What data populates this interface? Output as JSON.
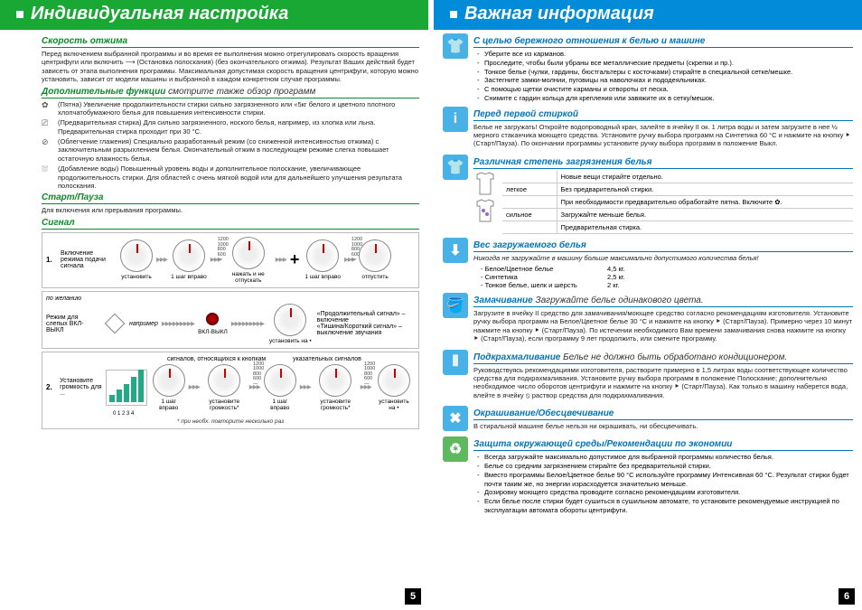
{
  "left": {
    "header": "Индивидуальная настройка",
    "spin": {
      "title": "Скорость отжима",
      "text": "Перед включением выбранной программы и во время ее выполнения можно отрегулировать скорость вращения центрифуги или включить ⟶ (Остановка полоскания) (без окончательного отжима). Результат Ваших действий будет зависеть от этапа выполнения программы. Максимальная допустимая скорость вращения центрифуги, которую можно установить, зависит от модели машины и выбранной в каждом конкретном случае программы."
    },
    "extra": {
      "title": "Дополнительные функции",
      "suffix": " смотрите также обзор программ",
      "items": [
        {
          "icon": "✿",
          "label": "(Пятна)",
          "text": "Увеличение продолжительности стирки сильно загрязненного или «5кг белого и цветного плотного хлопчатобумажного белья для повышения интенсивности стирки."
        },
        {
          "icon": "⎚",
          "label": "(Предварительная стирка)",
          "text": "Для сильно загрязненного, ноского белья, например, из хлопка или льна. Предварительная стирка проходит при 30 °C."
        },
        {
          "icon": "⊘",
          "label": "(Облегчение глажения)",
          "text": "Специально разработанный режим (со сниженной интенсивностью отжима) с заключительным разрыхлением белья. Окончательный отжим в последующем режиме слегка повышает остаточную влажность белья."
        },
        {
          "icon": "⛆",
          "label": "(Добавление воды)",
          "text": "Повышенный уровень воды и дополнительное полоскание, увеличивающее продолжительность стирки. Для областей с очень мягкой водой или для дальнейшего улучшения результата полоскания."
        }
      ]
    },
    "start": {
      "title": "Старт/Пауза",
      "text": "Для включения или прерывания программы."
    },
    "signal": {
      "title": "Сигнал"
    },
    "panel1": {
      "label1": "1.",
      "desc": "Включение режима подачи сигнала",
      "dials": [
        "установить",
        "1 шаг вправо",
        "нажать и не отпускать",
        "1 шаг вправо",
        "отпустить"
      ],
      "ticks": "1200\n1000\n800\n600\n—"
    },
    "panel2": {
      "heading": "по желанию",
      "left_label": "Режим для слепых ВКЛ-ВЫКЛ",
      "mid": "например",
      "onoff": "ВКЛ-ВЫКЛ",
      "right": "«Продолжительный сигнал» – включение\n«Тишина/Короткий сигнал» – выключение звучания",
      "dial": "установить на •"
    },
    "panel3": {
      "label1": "2.",
      "desc": "Установите громкость для ...",
      "h1": "сигналов, относящихся к кнопкам",
      "h2": "указательных сигналов",
      "dials": [
        "1 шаг вправо",
        "установите громкость*",
        "1 шаг вправо",
        "установите громкость*",
        "установить на •"
      ],
      "ticks": "1200\n1000\n800\n600\n—",
      "vol_nums": "0  1  2  3  4",
      "foot": "* при необх. повторите несколько раз"
    },
    "page": "5"
  },
  "right": {
    "header": "Важная информация",
    "care": {
      "title": "С целью бережного отношения к белью и машине",
      "icon": "👕",
      "bullets": [
        "Уберите все из карманов.",
        "Проследите, чтобы были убраны все металлические предметы (скрепки и пр.).",
        "Тонкое белье (чулки, гардины, бюстгальтеры с косточками) стирайте в специальной сетке/мешке.",
        "Застегните замки-молнии, пуговицы на наволочках и пододеяльниках.",
        "С помощью щетки очистите карманы и отвороты от песка.",
        "Снимите с гардин кольца для крепления или завяжите их в сетку/мешок."
      ]
    },
    "first": {
      "title": "Перед первой стиркой",
      "icon": "i",
      "text": "Белье не загружать! Откройте водопроводный кран, залейте в ячейку II ок. 1 литра воды и затем загрузите в нее ½ мерного стаканчика моющего средства. Установите ручку выбора программ на Синтетика 60 °C и нажмите на кнопку ⯈ (Старт/Пауза). По окончании программы установите ручку выбора программ в положение Выкл."
    },
    "soil": {
      "title": "Различная степень загрязнения белья",
      "icon": "👕",
      "rows": [
        [
          "",
          "Новые вещи стирайте отдельно."
        ],
        [
          "легкое",
          "Без предварительной стирки."
        ],
        [
          "",
          "При необходимости предварительно обработайте пятна. Включите ✿."
        ],
        [
          "сильное",
          "Загружайте меньше белья."
        ],
        [
          "",
          "Предварительная стирка."
        ]
      ]
    },
    "weight": {
      "title": "Вес загружаемого белья",
      "icon": "⬇",
      "lead": "Никогда не загружайте в машину больше максимально допустимого количества белья!",
      "rows": [
        [
          "Белое/Цветное белье",
          "4,5 кг."
        ],
        [
          "Синтетика",
          "2,5 кг."
        ],
        [
          "Тонкое белье, шелк и шерсть",
          "2 кг."
        ]
      ]
    },
    "soak": {
      "title": "Замачивание",
      "suffix": "   Загружайте белье одинакового цвета.",
      "icon": "🪣",
      "text": "Загрузите в ячейку II средство для замачивания/моющее средство согласно рекомендациям изготовителя. Установите ручку выбора программ на Белое/Цветное белье 30 °C и нажмите на кнопку ⯈ (Старт/Пауза). Примерно через 10 минут нажмите на кнопку ⯈ (Старт/Пауза). По истечении необходимого Вам времени замачивания снова нажмите на кнопку ⯈ (Старт/Пауза), если программу 9 лет продолжить, или смените программу."
    },
    "starch": {
      "title": "Подкрахмаливание",
      "suffix": "   Белье не должно быть обработано кондиционером.",
      "icon": "⦀",
      "text": "Руководствуясь рекомендациями изготовителя, растворите примерно в 1,5 литрах воды соответствующее количество средства для подкрахмаливания. Установите ручку выбора программ в положение Полоскание; дополнительно необходимое число оборотов центрифуги и нажмите на кнопку ⯈ (Старт/Пауза). Как только в машину наберется вода, влейте в ячейку ⦸ раствор средства для подкрахмаливания."
    },
    "dye": {
      "title": "Окрашивание/Обесцвечивание",
      "icon": "✖",
      "text": "В стиральной машине белье нельзя ни окрашивать, ни обесцвечивать."
    },
    "eco": {
      "title": "Защита окружающей среды/Рекомендации по экономии",
      "icon": "♻",
      "bullets": [
        "Всегда загружайте максимально допустимое для выбранной программы количество белья.",
        "Белье со средним загрязнением стирайте без предварительной стирки.",
        "Вместо программы Белое/Цветное белье 90 °C используйте программу Интенсивная 60 °C. Результат стирки будет почти таким же, но энергии израсходуется значительно меньше.",
        "Дозировку моющего средства проводите согласно рекомендациям изготовителя.",
        "Если белье после стирки будет сушиться в сушильном автомате, то установите рекомендуемые инструкцией по эксплуатации автомата обороты центрифуги."
      ]
    },
    "page": "6"
  }
}
